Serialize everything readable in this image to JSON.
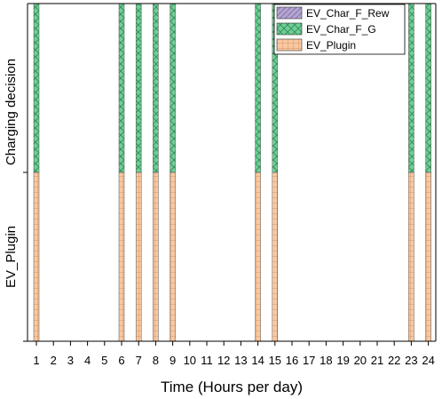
{
  "chart_data": {
    "type": "bar",
    "stacked": true,
    "categories": [
      "1",
      "2",
      "3",
      "4",
      "5",
      "6",
      "7",
      "8",
      "9",
      "10",
      "11",
      "12",
      "13",
      "14",
      "15",
      "16",
      "17",
      "18",
      "19",
      "20",
      "21",
      "22",
      "23",
      "24"
    ],
    "series": [
      {
        "name": "EV_Plugin",
        "values": [
          1,
          0,
          0,
          0,
          0,
          1,
          1,
          1,
          1,
          0,
          0,
          0,
          0,
          1,
          1,
          0,
          0,
          0,
          0,
          0,
          0,
          0,
          1,
          1
        ],
        "color": "#f9c8a0",
        "pattern": "grid"
      },
      {
        "name": "EV_Char_F_G",
        "values": [
          1,
          0,
          0,
          0,
          0,
          1,
          1,
          1,
          1,
          0,
          0,
          0,
          0,
          1,
          1,
          0,
          0,
          0,
          0,
          0,
          0,
          0,
          1,
          1
        ],
        "color": "#6fce95",
        "pattern": "crosshatch"
      },
      {
        "name": "EV_Char_F_Rew",
        "values": [
          0,
          0,
          0,
          0,
          0,
          0,
          0,
          0,
          0,
          0,
          0,
          0,
          0,
          0,
          0,
          0,
          0,
          0,
          0,
          0,
          0,
          0,
          0,
          0
        ],
        "color": "#b3a4d1",
        "pattern": "diagonal"
      }
    ],
    "xlabel": "Time (Hours per day)",
    "ylabels": [
      "EV_Plugin",
      "Charging decision"
    ],
    "ylim": [
      0,
      2
    ],
    "legend_position": "top-right",
    "grid": false
  }
}
